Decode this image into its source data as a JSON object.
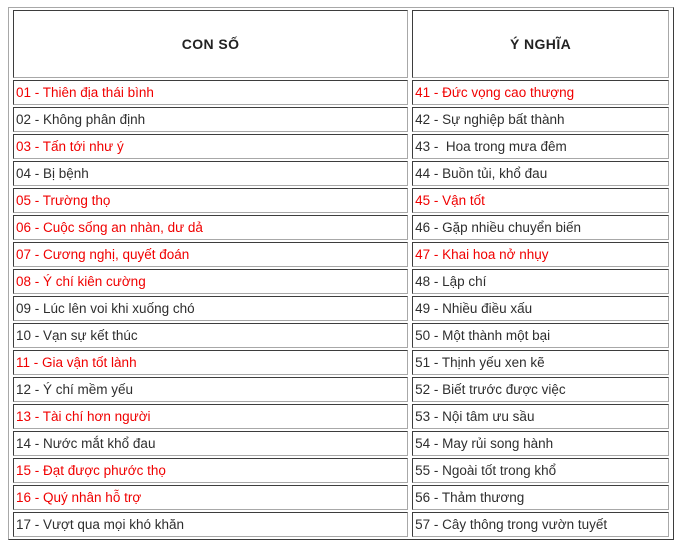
{
  "table": {
    "headers": [
      {
        "label": "CON SỐ"
      },
      {
        "label": "Ý NGHĨA"
      }
    ],
    "colors": {
      "red": "#f00000",
      "black": "#2e2e2e"
    },
    "rows": [
      {
        "con_so": {
          "text": "01 - Thiên địa thái bình",
          "color": "red"
        },
        "y_nghia": {
          "text": "41 - Đức vọng cao thượng",
          "color": "red"
        }
      },
      {
        "con_so": {
          "text": "02 - Không phân định",
          "color": "black"
        },
        "y_nghia": {
          "text": "42 - Sự nghiệp bất thành",
          "color": "black"
        }
      },
      {
        "con_so": {
          "text": "03 - Tấn tới như ý",
          "color": "red"
        },
        "y_nghia": {
          "text": "43 -  Hoa trong mưa đêm",
          "color": "black"
        }
      },
      {
        "con_so": {
          "text": "04 - Bị bệnh",
          "color": "black"
        },
        "y_nghia": {
          "text": "44 - Buồn tủi, khổ đau",
          "color": "black"
        }
      },
      {
        "con_so": {
          "text": "05 - Trường thọ",
          "color": "red"
        },
        "y_nghia": {
          "text": "45 - Vận tốt",
          "color": "red"
        }
      },
      {
        "con_so": {
          "text": "06 - Cuộc sống an nhàn, dư dả",
          "color": "red"
        },
        "y_nghia": {
          "text": "46 - Gặp nhiều chuyển biến",
          "color": "black"
        }
      },
      {
        "con_so": {
          "text": "07 - Cương nghị, quyết đoán",
          "color": "red"
        },
        "y_nghia": {
          "text": "47 - Khai hoa nở nhụy",
          "color": "red"
        }
      },
      {
        "con_so": {
          "text": "08 - Ý chí kiên cường",
          "color": "red"
        },
        "y_nghia": {
          "text": "48 - Lập chí",
          "color": "black"
        }
      },
      {
        "con_so": {
          "text": "09 - Lúc lên voi khi xuống chó",
          "color": "black"
        },
        "y_nghia": {
          "text": "49 - Nhiều điều xấu",
          "color": "black"
        }
      },
      {
        "con_so": {
          "text": "10 - Vạn sự kết thúc",
          "color": "black"
        },
        "y_nghia": {
          "text": "50 - Một thành một bại",
          "color": "black"
        }
      },
      {
        "con_so": {
          "text": "11 - Gia vận tốt lành",
          "color": "red"
        },
        "y_nghia": {
          "text": "51 - Thịnh yếu xen kẽ",
          "color": "black"
        }
      },
      {
        "con_so": {
          "text": "12 - Ý chí mềm yếu",
          "color": "black"
        },
        "y_nghia": {
          "text": "52 - Biết trước được việc",
          "color": "black"
        }
      },
      {
        "con_so": {
          "text": "13 - Tài chí hơn người",
          "color": "red"
        },
        "y_nghia": {
          "text": "53 - Nội tâm ưu sầu",
          "color": "black"
        }
      },
      {
        "con_so": {
          "text": "14 - Nước mắt khổ đau",
          "color": "black"
        },
        "y_nghia": {
          "text": "54 - May rủi song hành",
          "color": "black"
        }
      },
      {
        "con_so": {
          "text": "15 - Đạt được phước thọ",
          "color": "red"
        },
        "y_nghia": {
          "text": "55 - Ngoài tốt trong khổ",
          "color": "black"
        }
      },
      {
        "con_so": {
          "text": "16 - Quý nhân hỗ trợ",
          "color": "red"
        },
        "y_nghia": {
          "text": "56 - Thảm thương",
          "color": "black"
        }
      },
      {
        "con_so": {
          "text": "17 - Vượt qua mọi khó khăn",
          "color": "black"
        },
        "y_nghia": {
          "text": "57 - Cây thông trong vườn tuyết",
          "color": "black"
        }
      }
    ]
  }
}
